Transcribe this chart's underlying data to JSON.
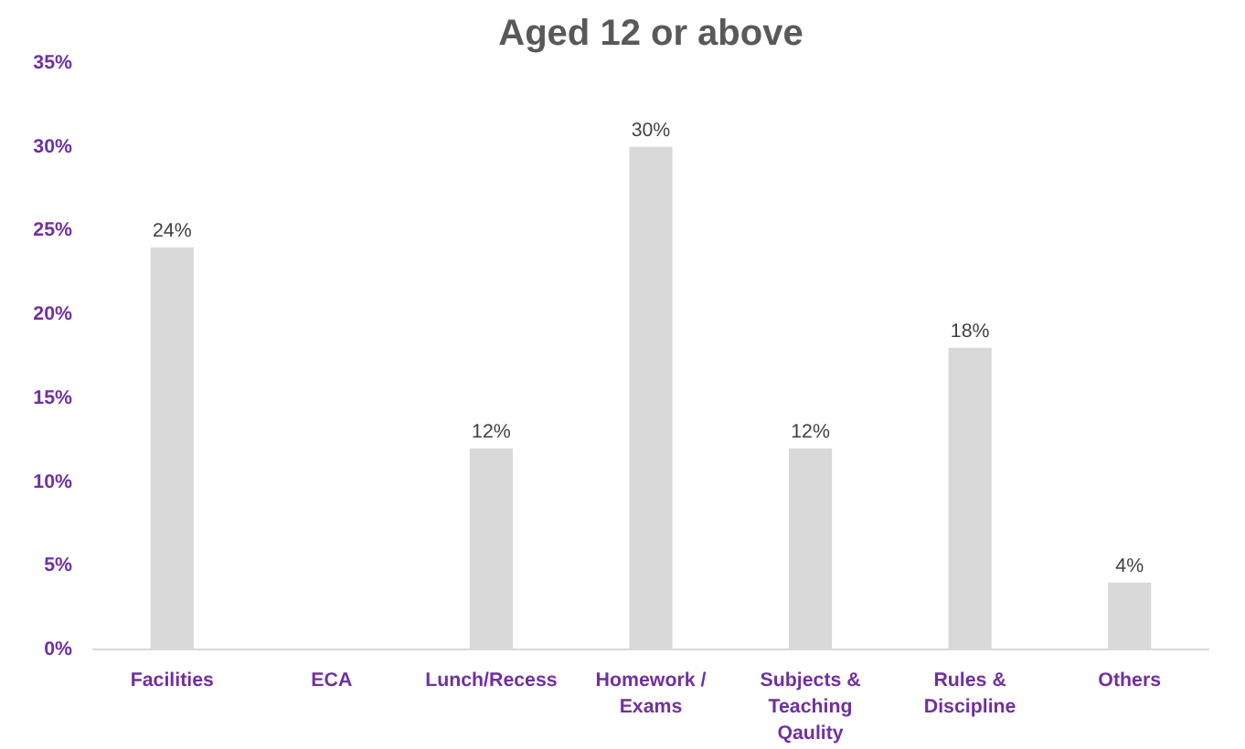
{
  "chart_data": {
    "type": "bar",
    "title": "Aged 12 or above",
    "categories": [
      "Facilities",
      "ECA",
      "Lunch/Recess",
      "Homework / Exams",
      "Subjects & Teaching Qaulity",
      "Rules & Discipline",
      "Others"
    ],
    "values": [
      24,
      0,
      12,
      30,
      12,
      18,
      4
    ],
    "value_labels": [
      "24%",
      null,
      "12%",
      "30%",
      "12%",
      "18%",
      "4%"
    ],
    "color": "#d9d9d9",
    "ylim": [
      0,
      35
    ],
    "yticks": [
      {
        "value": 0,
        "label": "0%"
      },
      {
        "value": 5,
        "label": "5%"
      },
      {
        "value": 10,
        "label": "10%"
      },
      {
        "value": 15,
        "label": "15%"
      },
      {
        "value": 20,
        "label": "20%"
      },
      {
        "value": 25,
        "label": "25%"
      },
      {
        "value": 30,
        "label": "30%"
      },
      {
        "value": 35,
        "label": "35%"
      }
    ],
    "grid": false
  }
}
